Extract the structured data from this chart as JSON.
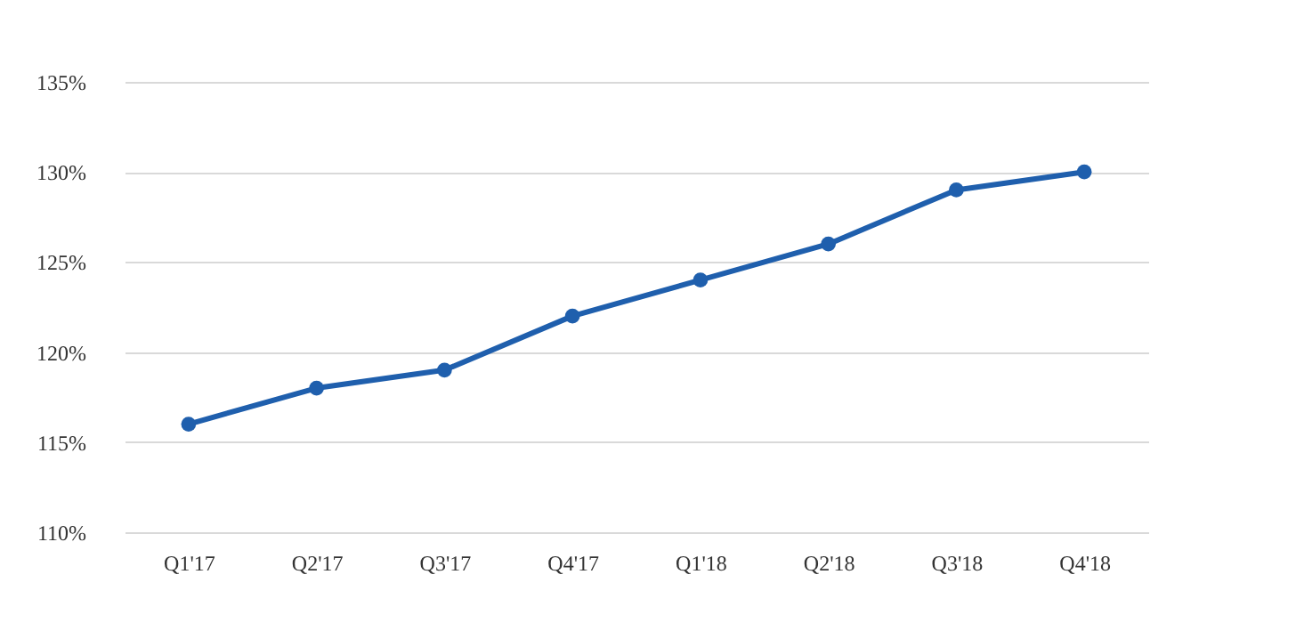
{
  "chart_data": {
    "type": "line",
    "categories": [
      "Q1'17",
      "Q2'17",
      "Q3'17",
      "Q4'17",
      "Q1'18",
      "Q2'18",
      "Q3'18",
      "Q4'18"
    ],
    "series": [
      {
        "color": "#1f5fad",
        "values": [
          116,
          118,
          119,
          122,
          124,
          126,
          129,
          130
        ]
      }
    ],
    "ylim": [
      110,
      135
    ],
    "yticks": [
      {
        "value": 110,
        "label": "110%"
      },
      {
        "value": 115,
        "label": "115%"
      },
      {
        "value": 120,
        "label": "120%"
      },
      {
        "value": 125,
        "label": "125%"
      },
      {
        "value": 130,
        "label": "130%"
      },
      {
        "value": 135,
        "label": "135%"
      }
    ],
    "grid": "y",
    "marker": "circle",
    "line_style": "solid"
  }
}
